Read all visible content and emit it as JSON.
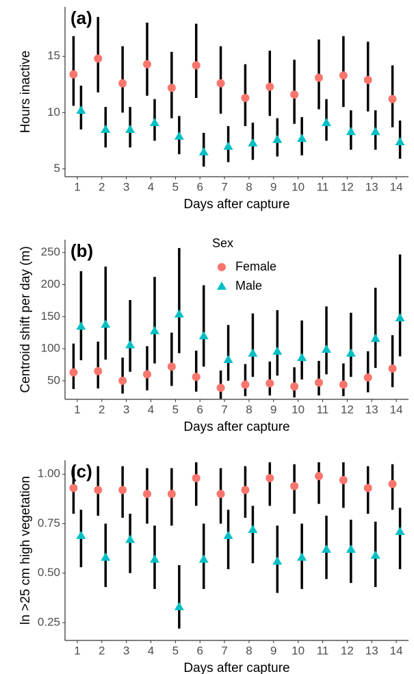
{
  "chart_data": [
    {
      "type": "pointrange",
      "label": "(a)",
      "x_label": "Days after capture",
      "y_label": "Hours inactive",
      "x": [
        1,
        2,
        3,
        4,
        5,
        6,
        7,
        8,
        9,
        10,
        11,
        12,
        13,
        14
      ],
      "xlim": [
        0.5,
        14.5
      ],
      "ylim": [
        4.3,
        19.4
      ],
      "yticks": [
        5,
        10,
        15
      ],
      "series": [
        {
          "color": "#F8766D",
          "marker": "circle",
          "values": [
            13.4,
            14.8,
            12.6,
            14.3,
            12.2,
            14.2,
            12.6,
            11.3,
            12.3,
            11.6,
            13.1,
            13.3,
            12.9,
            11.2
          ],
          "lower": [
            10.6,
            11.8,
            10.0,
            11.5,
            9.5,
            11.3,
            9.9,
            8.8,
            9.7,
            9.0,
            10.3,
            10.5,
            10.1,
            8.7
          ],
          "upper": [
            16.8,
            18.5,
            15.9,
            18.0,
            15.4,
            17.9,
            15.9,
            14.3,
            15.5,
            14.7,
            16.5,
            16.8,
            16.3,
            14.2
          ]
        },
        {
          "color": "#00BFC4",
          "marker": "triangle",
          "values": [
            10.2,
            8.5,
            8.5,
            9.1,
            7.9,
            6.5,
            7.0,
            7.3,
            7.6,
            7.7,
            9.1,
            8.3,
            8.3,
            7.4
          ],
          "lower": [
            8.5,
            6.9,
            6.9,
            7.5,
            6.3,
            5.2,
            5.6,
            5.8,
            6.1,
            6.2,
            7.5,
            6.7,
            6.7,
            5.9
          ],
          "upper": [
            12.4,
            10.5,
            10.5,
            11.2,
            9.7,
            8.2,
            8.8,
            9.1,
            9.5,
            9.6,
            11.2,
            10.2,
            10.2,
            9.3
          ]
        }
      ]
    },
    {
      "type": "pointrange",
      "label": "(b)",
      "x_label": "Days after capture",
      "y_label": "Centroid shift per day (m)",
      "x": [
        1,
        2,
        3,
        4,
        5,
        6,
        7,
        8,
        9,
        10,
        11,
        12,
        13,
        14
      ],
      "xlim": [
        0.5,
        14.5
      ],
      "ylim": [
        21,
        270
      ],
      "yticks": [
        50,
        100,
        150,
        200,
        250
      ],
      "legend": {
        "title": "Sex",
        "position": "top"
      },
      "series": [
        {
          "name": "Female",
          "color": "#F8766D",
          "marker": "circle",
          "values": [
            63,
            65,
            50,
            60,
            72,
            56,
            39,
            44,
            46,
            41,
            47,
            44,
            55,
            69
          ],
          "lower": [
            37,
            38,
            30,
            35,
            42,
            33,
            22,
            26,
            27,
            24,
            27,
            26,
            32,
            40
          ],
          "upper": [
            108,
            111,
            86,
            104,
            125,
            97,
            66,
            76,
            80,
            71,
            81,
            77,
            96,
            121
          ]
        },
        {
          "name": "Male",
          "color": "#00BFC4",
          "marker": "triangle",
          "values": [
            135,
            138,
            106,
            128,
            154,
            120,
            83,
            93,
            96,
            86,
            99,
            93,
            116,
            148
          ],
          "lower": [
            82,
            83,
            64,
            77,
            93,
            72,
            50,
            56,
            58,
            52,
            60,
            56,
            70,
            88
          ],
          "upper": [
            221,
            228,
            176,
            212,
            257,
            199,
            137,
            155,
            160,
            144,
            166,
            156,
            195,
            247
          ]
        }
      ]
    },
    {
      "type": "pointrange",
      "label": "(c)",
      "x_label": "Days after capture",
      "y_label": "ln >25 cm high vegetation",
      "x": [
        1,
        2,
        3,
        4,
        5,
        6,
        7,
        8,
        9,
        10,
        11,
        12,
        13,
        14
      ],
      "xlim": [
        0.5,
        14.5
      ],
      "ylim": [
        0.16,
        1.07
      ],
      "yticks": [
        0.25,
        {
          "value": 0.5,
          "label": "0.50"
        },
        0.75,
        {
          "value": 1,
          "label": "1.00"
        }
      ],
      "series": [
        {
          "color": "#F8766D",
          "marker": "circle",
          "values": [
            0.93,
            0.92,
            0.92,
            0.9,
            0.9,
            0.98,
            0.9,
            0.92,
            0.98,
            0.94,
            0.99,
            0.97,
            0.93,
            0.95
          ],
          "lower": [
            0.8,
            0.79,
            0.78,
            0.75,
            0.74,
            0.84,
            0.75,
            0.78,
            0.84,
            0.8,
            0.85,
            0.83,
            0.8,
            0.82
          ],
          "upper": [
            1.04,
            1.04,
            1.04,
            1.03,
            1.03,
            1.06,
            1.03,
            1.04,
            1.06,
            1.05,
            1.06,
            1.06,
            1.04,
            1.05
          ]
        },
        {
          "color": "#00BFC4",
          "marker": "triangle",
          "values": [
            0.69,
            0.58,
            0.67,
            0.57,
            0.33,
            0.57,
            0.69,
            0.72,
            0.56,
            0.58,
            0.62,
            0.62,
            0.59,
            0.71
          ],
          "lower": [
            0.53,
            0.43,
            0.5,
            0.42,
            0.22,
            0.42,
            0.52,
            0.55,
            0.4,
            0.42,
            0.47,
            0.45,
            0.43,
            0.52
          ],
          "upper": [
            0.82,
            0.75,
            0.8,
            0.74,
            0.54,
            0.75,
            0.82,
            0.84,
            0.74,
            0.75,
            0.79,
            0.77,
            0.76,
            0.83
          ]
        }
      ]
    }
  ]
}
